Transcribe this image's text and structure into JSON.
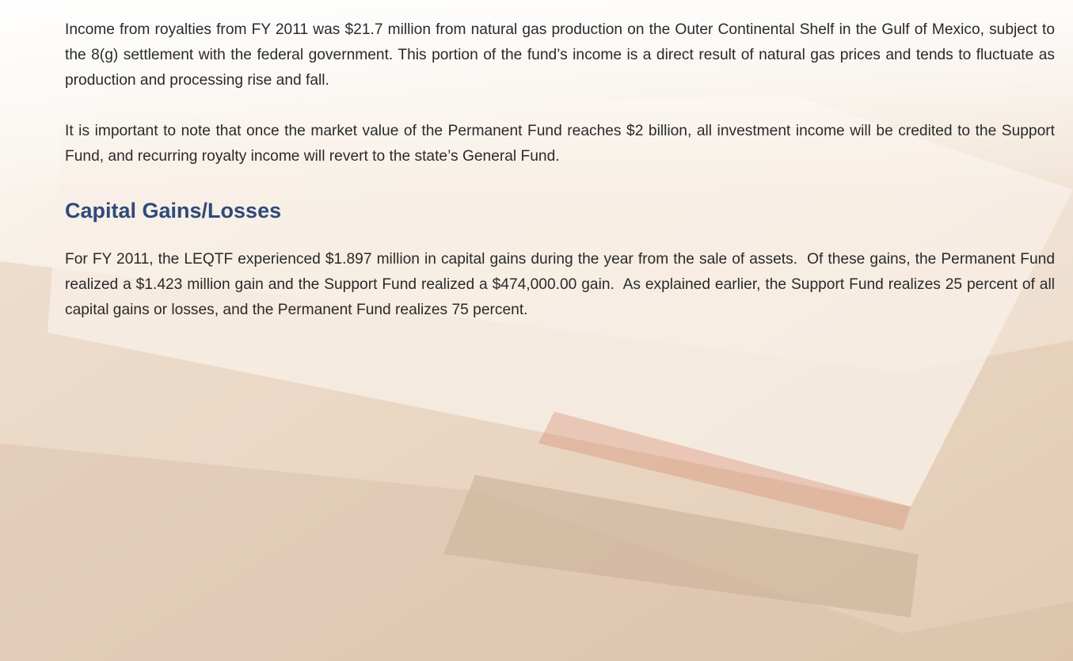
{
  "paragraphs": [
    "Income from royalties from FY 2011 was $21.7 million from natural gas production on the Outer Continental Shelf in the Gulf of Mexico, subject to the 8(g) settlement with the federal government. This portion of the fund’s income is a direct result of natural gas prices and tends to fluctuate as production and processing rise and fall.",
    "It is important to note that once the market value of the Permanent Fund reaches $2 billion, all investment income will be credited to the Support Fund, and recurring royalty income will revert to the state’s General Fund."
  ],
  "section": {
    "heading": "Capital Gains/Losses",
    "paragraphs": [
      "For FY 2011, the LEQTF experienced $1.897 million in capital gains during the year from the sale of assets.  Of these gains, the Permanent Fund realized a $1.423 million gain and the Support Fund realized a $474,000.00 gain.  As explained earlier, the Support Fund realizes 25 percent of all capital gains or losses, and the Permanent Fund realizes 75 percent."
    ]
  }
}
